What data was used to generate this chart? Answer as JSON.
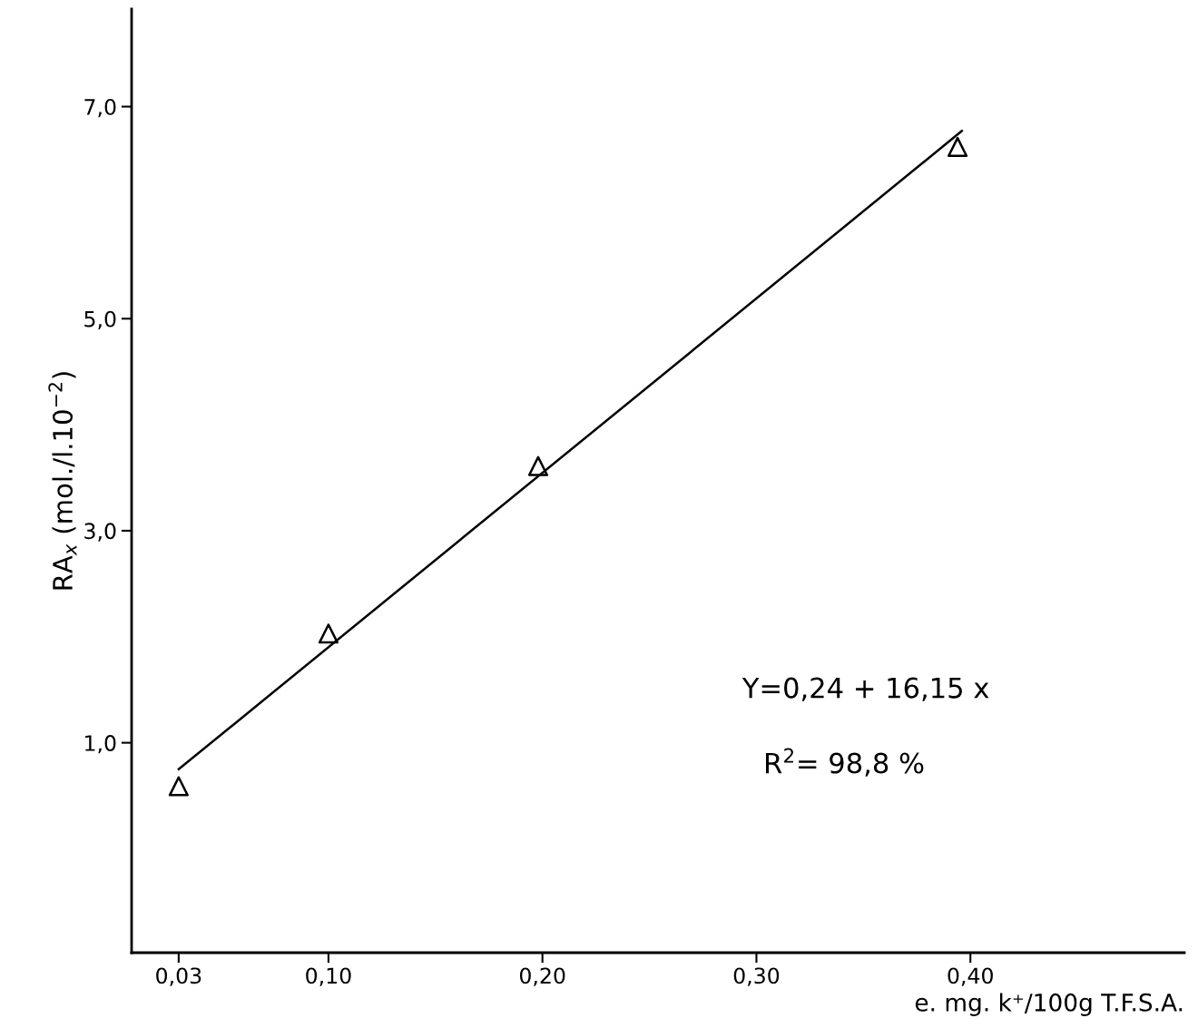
{
  "chart_data": {
    "type": "scatter",
    "xlabel": "e. mg. k⁺/100g T.F.S.A.",
    "ylabel": "RA$_{x}$ (mol./l.10$^{−2}$)",
    "x": [
      0.03,
      0.1,
      0.198,
      0.394
    ],
    "series": [
      {
        "values": [
          0.59,
          2.03,
          3.61,
          6.62
        ],
        "color": "#000000",
        "marker": "triangle"
      },
      {
        "type": "line",
        "x": [
          0.03,
          0.396
        ],
        "values": [
          0.75,
          6.77
        ],
        "color": "#000000",
        "marker": "none"
      }
    ],
    "xlim": [
      0.008,
      0.5
    ],
    "ylim": [
      -0.98,
      7.92
    ],
    "xticks": [
      {
        "value": 0.03,
        "label": "0,03"
      },
      {
        "value": 0.1,
        "label": "0,10"
      },
      {
        "value": 0.2,
        "label": "0,20"
      },
      {
        "value": 0.3,
        "label": "0,30"
      },
      {
        "value": 0.4,
        "label": "0,40"
      }
    ],
    "yticks": [
      {
        "value": 1,
        "label": "1,0"
      },
      {
        "value": 3,
        "label": "3,0"
      },
      {
        "value": 5,
        "label": "5,0"
      },
      {
        "value": 7,
        "label": "7,0"
      }
    ],
    "annotations": [
      "Y=0,24 + 16,15 x",
      "R$^{2}$= 98,8 %"
    ],
    "grid": false,
    "legend": false
  }
}
